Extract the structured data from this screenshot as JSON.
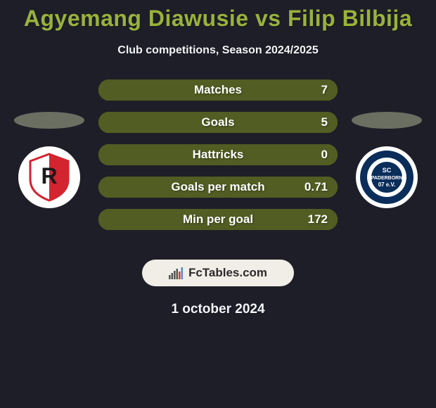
{
  "background_color": "#1e1e28",
  "title": {
    "text": "Agyemang Diawusie vs Filip Bilbija",
    "color": "#99b23b",
    "fontsize": 32
  },
  "subtitle": {
    "text": "Club competitions, Season 2024/2025",
    "color": "#f2f5f7",
    "fontsize": 16
  },
  "stat_bars": {
    "empty_color": "#aa9930",
    "fill_color": "#515d22",
    "label_color": "#ffffff",
    "value_color": "#ffffff",
    "bar_radius": 15,
    "items": [
      {
        "label": "Matches",
        "value": "7",
        "fill_pct": 100
      },
      {
        "label": "Goals",
        "value": "5",
        "fill_pct": 100
      },
      {
        "label": "Hattricks",
        "value": "0",
        "fill_pct": 100
      },
      {
        "label": "Goals per match",
        "value": "0.71",
        "fill_pct": 100
      },
      {
        "label": "Min per goal",
        "value": "172",
        "fill_pct": 100
      }
    ]
  },
  "left_oval_color": "#6b6f62",
  "right_oval_color": "#6b6f62",
  "left_logo": {
    "bg": "#ffffff",
    "inner_bg": "#ffffff",
    "accent": "#d32430",
    "text": "R",
    "text_color": "#1a1a1a"
  },
  "right_logo": {
    "bg": "#ffffff",
    "ring": "#0a2d5a",
    "inner": "#0a2d5a",
    "text_top": "SC",
    "text_mid": "PADERBORN",
    "text_bot": "07",
    "text_color": "#ffffff"
  },
  "fctables": {
    "bg": "#f0eee6",
    "text": "FcTables.com",
    "text_color": "#2a2a2a",
    "bars": [
      "#555555",
      "#555555",
      "#555555",
      "#555555",
      "#d33",
      "#4a90d9"
    ]
  },
  "date": {
    "text": "1 october 2024",
    "color": "#f2f5f7"
  }
}
